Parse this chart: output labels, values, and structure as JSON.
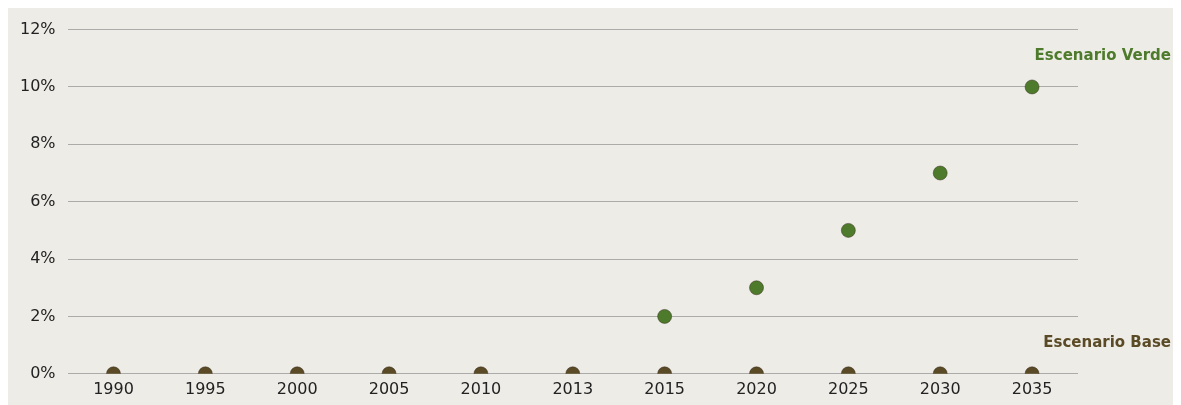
{
  "chart_data": {
    "type": "scatter",
    "categories": [
      "1990",
      "1995",
      "2000",
      "2005",
      "2010",
      "2013",
      "2015",
      "2020",
      "2025",
      "2030",
      "2035"
    ],
    "series": [
      {
        "name": "Escenario Base",
        "color": "#5a4a26",
        "values": [
          0,
          0,
          0,
          0,
          0,
          0,
          0,
          0,
          0,
          0,
          0
        ]
      },
      {
        "name": "Escenario Verde",
        "color": "#4e7a2c",
        "values": [
          null,
          null,
          null,
          null,
          null,
          null,
          2,
          3,
          5,
          7,
          10
        ]
      }
    ],
    "ylim": [
      0,
      12
    ],
    "yticks": [
      {
        "value": 0,
        "label": "0%"
      },
      {
        "value": 2,
        "label": "2%"
      },
      {
        "value": 4,
        "label": "4%"
      },
      {
        "value": 6,
        "label": "6%"
      },
      {
        "value": 8,
        "label": "8%"
      },
      {
        "value": 10,
        "label": "10%"
      },
      {
        "value": 12,
        "label": "12%"
      }
    ],
    "grid": "y",
    "legend": false,
    "marker": "circle"
  }
}
